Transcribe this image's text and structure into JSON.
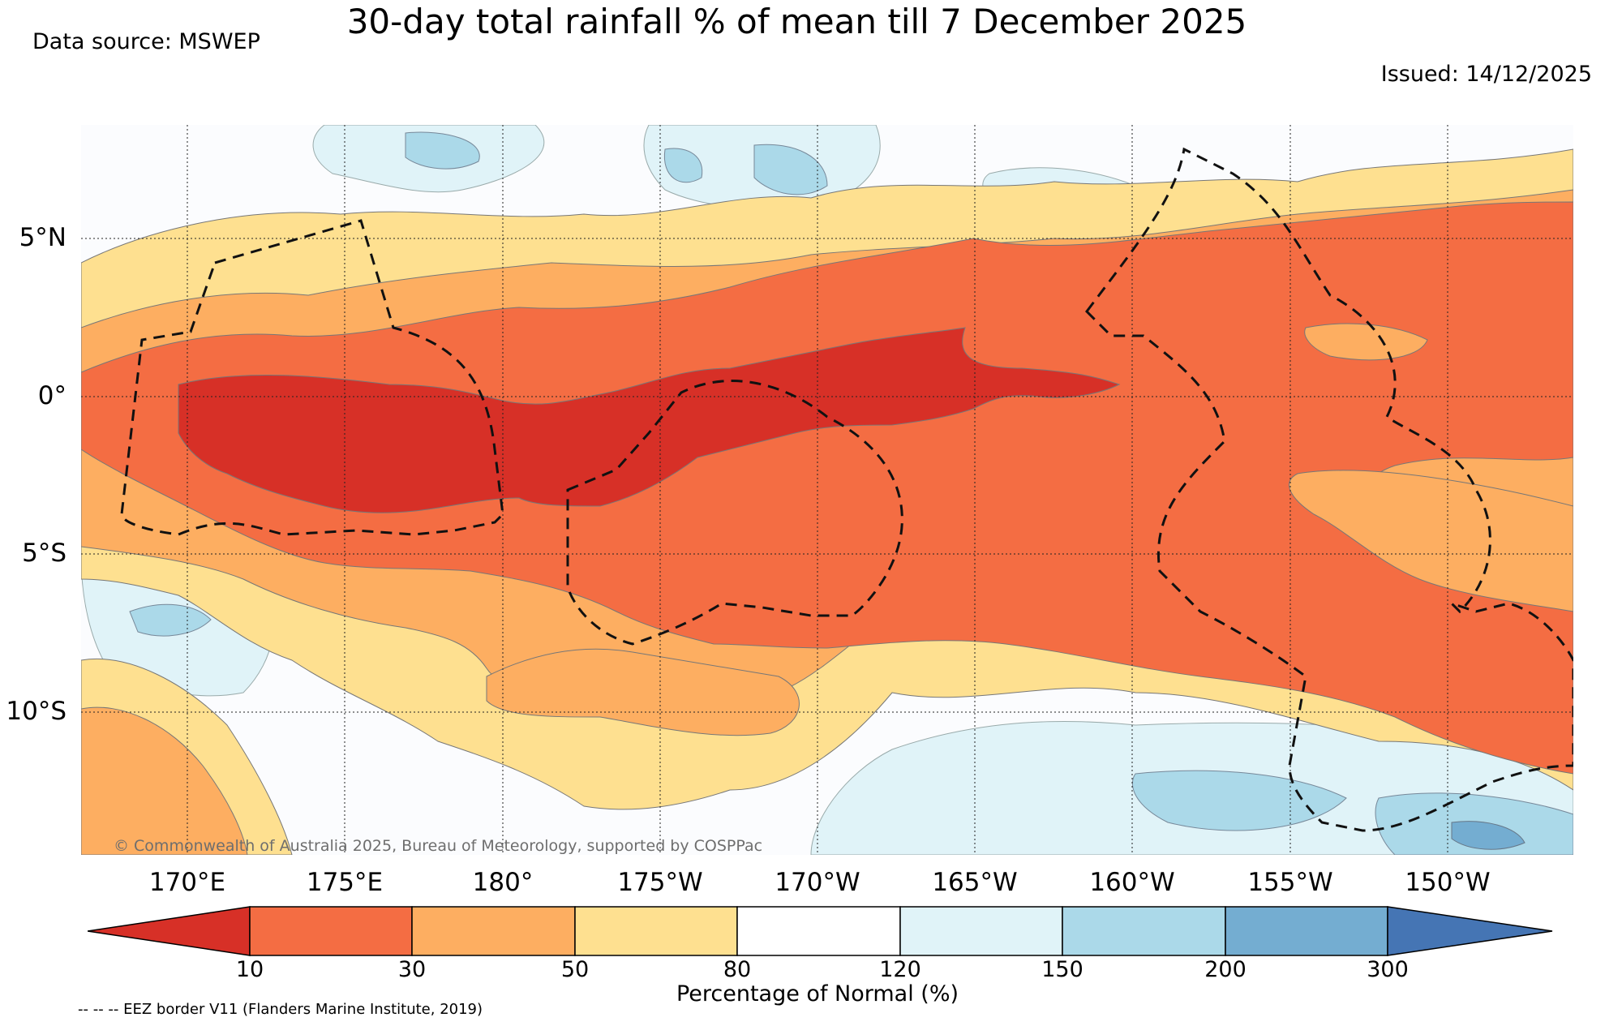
{
  "title": "30-day total rainfall % of mean till 7 December 2025",
  "data_source": "Data source: MSWEP",
  "issued": "Issued: 14/12/2025",
  "copyright": "© Commonwealth of Australia 2025, Bureau of Meteorology, supported by COSPPac",
  "eez_note": "-- -- -- EEZ border V11 (Flanders Marine Institute, 2019)",
  "map_extent": {
    "lon_min": 166.8,
    "lon_max": 214.2,
    "lat_min": -14.3,
    "lat_max": 8.8,
    "lon_note": "east-positive, 190 = 170°W"
  },
  "lat_labels": [
    {
      "lat": 5,
      "label": "5°N"
    },
    {
      "lat": 0,
      "label": "0°"
    },
    {
      "lat": -5,
      "label": "5°S"
    },
    {
      "lat": -10,
      "label": "10°S"
    }
  ],
  "lon_labels": [
    {
      "lon": 170,
      "label": "170°E"
    },
    {
      "lon": 175,
      "label": "175°E"
    },
    {
      "lon": 180,
      "label": "180°"
    },
    {
      "lon": 185,
      "label": "175°W"
    },
    {
      "lon": 190,
      "label": "170°W"
    },
    {
      "lon": 195,
      "label": "165°W"
    },
    {
      "lon": 200,
      "label": "160°W"
    },
    {
      "lon": 205,
      "label": "155°W"
    },
    {
      "lon": 210,
      "label": "150°W"
    }
  ],
  "colorbar": {
    "label": "Percentage of Normal (%)",
    "ticks": [
      "10",
      "30",
      "50",
      "80",
      "120",
      "150",
      "200",
      "300"
    ],
    "colors": [
      "#d73027",
      "#f46d43",
      "#fdae61",
      "#fee090",
      "#ffffff",
      "#e0f3f8",
      "#abd9e9",
      "#74add1",
      "#4575b4"
    ]
  },
  "region_labels": {
    "color_lt10": "below 10% of normal",
    "color_10_30": "10-30% of normal",
    "color_30_50": "30-50% of normal",
    "color_50_80": "50-80% of normal",
    "color_120_150": "120-150% of normal",
    "color_150_200": "150-200% of normal"
  }
}
